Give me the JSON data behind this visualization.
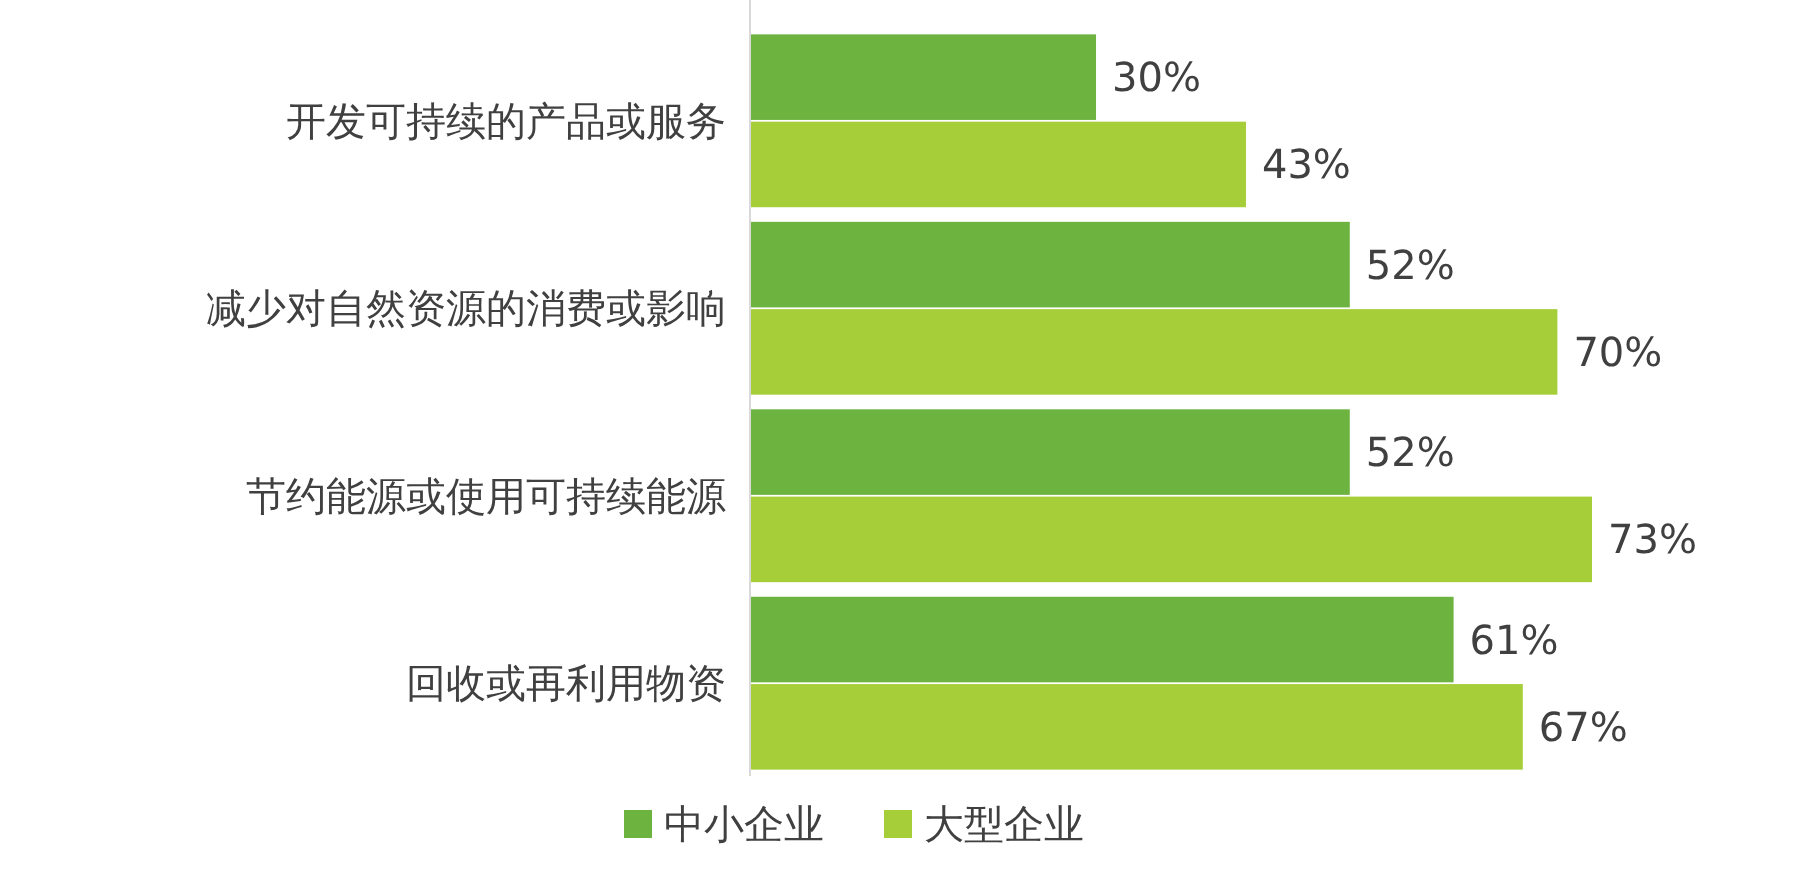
{
  "chart_data": {
    "type": "bar",
    "orientation": "horizontal",
    "categories": [
      "开发可持续的产品或服务",
      "减少对自然资源的消费或影响",
      "节约能源或使用可持续能源",
      "回收或再利用物资"
    ],
    "series": [
      {
        "name": "中小企业",
        "color": "#6db33f",
        "values": [
          30,
          52,
          52,
          61
        ],
        "value_labels": [
          "30%",
          "52%",
          "52%",
          "61%"
        ]
      },
      {
        "name": "大型企业",
        "color": "#a6ce39",
        "values": [
          43,
          70,
          73,
          67
        ],
        "value_labels": [
          "43%",
          "70%",
          "73%",
          "67%"
        ]
      }
    ],
    "legend": "bottom"
  }
}
